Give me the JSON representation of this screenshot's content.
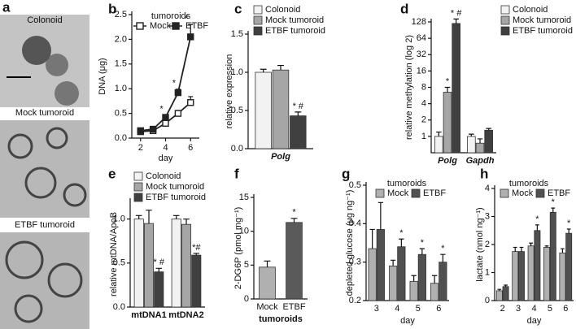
{
  "panel_a": {
    "panel": "a",
    "labels": [
      "Colonoid",
      "Mock tumoroid",
      "ETBF tumoroid"
    ]
  },
  "chart_data": [
    {
      "panel": "b",
      "type": "line",
      "ylabel": "DNA (μg)",
      "xlabel": "day",
      "legend_title": "tumoroids",
      "x": [
        2,
        3,
        4,
        5,
        6
      ],
      "xlim": [
        1.3,
        6.7
      ],
      "xticks": [
        2,
        4,
        6
      ],
      "ylim": [
        0,
        2.5
      ],
      "yticks": [
        {
          "value": 0,
          "label": "0.0"
        },
        0.5,
        {
          "value": 1,
          "label": "1.0"
        },
        1.5,
        {
          "value": 2,
          "label": "2.0"
        },
        2.5
      ],
      "series": [
        {
          "name": "Mock",
          "color": "#222222",
          "marker_fill": "#ffffff",
          "values": [
            0.13,
            0.15,
            0.3,
            0.5,
            0.72
          ],
          "errors": [
            0.03,
            0.03,
            0.04,
            0.06,
            0.12
          ],
          "annotations": [
            null,
            null,
            null,
            null,
            null
          ]
        },
        {
          "name": "ETBF",
          "color": "#222222",
          "marker_fill": "#222222",
          "values": [
            0.15,
            0.18,
            0.42,
            0.92,
            2.05
          ],
          "errors": [
            0.03,
            0.03,
            0.05,
            0.07,
            0.25
          ],
          "annotations": [
            null,
            null,
            "*",
            "*",
            "*"
          ]
        }
      ]
    },
    {
      "panel": "c",
      "type": "grouped_bar",
      "ylabel": "relative expression",
      "categories": [
        "Polg"
      ],
      "ylim": [
        0,
        1.5
      ],
      "yticks": [
        {
          "value": 0,
          "label": "0.0"
        },
        0.5,
        {
          "value": 1,
          "label": "1.0"
        },
        1.5
      ],
      "series": [
        {
          "name": "Colonoid",
          "color": "#f2f2f2",
          "values": [
            1.0
          ],
          "errors": [
            0.04
          ],
          "annotations": [
            null
          ]
        },
        {
          "name": "Mock tumoroid",
          "color": "#a6a6a6",
          "values": [
            1.03
          ],
          "errors": [
            0.06
          ],
          "annotations": [
            null
          ]
        },
        {
          "name": "ETBF tumoroid",
          "color": "#404040",
          "values": [
            0.43
          ],
          "errors": [
            0.05
          ],
          "annotations": [
            "* #"
          ]
        }
      ]
    },
    {
      "panel": "d",
      "type": "grouped_bar",
      "ylabel": "relative methylation (log 2)",
      "yscale": "log",
      "log_base": 2,
      "categories": [
        "Polg",
        "Gapdh"
      ],
      "ylim": [
        0.5,
        128
      ],
      "yticks": [
        1,
        2,
        4,
        8,
        16,
        32,
        64,
        128
      ],
      "series": [
        {
          "name": "Colonoid",
          "color": "#f2f2f2",
          "values": [
            1.0,
            1.0
          ],
          "errors": [
            0.2,
            0.1
          ],
          "annotations": [
            null,
            null
          ]
        },
        {
          "name": "Mock tumoroid",
          "color": "#a6a6a6",
          "values": [
            6.5,
            0.75
          ],
          "errors": [
            1.5,
            0.15
          ],
          "annotations": [
            "*",
            null
          ]
        },
        {
          "name": "ETBF tumoroid",
          "color": "#404040",
          "values": [
            120,
            1.3
          ],
          "errors": [
            25,
            0.1
          ],
          "annotations": [
            "* #",
            null
          ]
        }
      ]
    },
    {
      "panel": "e",
      "type": "grouped_bar",
      "ylabel": "relative mtDNA/ApoB",
      "categories": [
        "mtDNA1",
        "mtDNA2"
      ],
      "ylim": [
        0,
        1.2
      ],
      "yticks": [
        {
          "value": 0,
          "label": "0.0"
        },
        0.5,
        {
          "value": 1,
          "label": "1.0"
        }
      ],
      "series": [
        {
          "name": "Colonoid",
          "color": "#f2f2f2",
          "values": [
            1.0,
            1.0
          ],
          "errors": [
            0.04,
            0.04
          ],
          "annotations": [
            null,
            null
          ]
        },
        {
          "name": "Mock tumoroid",
          "color": "#a6a6a6",
          "values": [
            0.95,
            0.94
          ],
          "errors": [
            0.15,
            0.06
          ],
          "annotations": [
            null,
            null
          ]
        },
        {
          "name": "ETBF tumoroid",
          "color": "#404040",
          "values": [
            0.4,
            0.59
          ],
          "errors": [
            0.04,
            0.02
          ],
          "annotations": [
            "* #",
            "*#"
          ]
        }
      ]
    },
    {
      "panel": "f",
      "type": "bar",
      "ylabel": "2-DG6P (pmol mg⁻¹)",
      "xlabel": "tumoroids",
      "categories": [
        "Mock",
        "ETBF"
      ],
      "values": [
        4.7,
        11.3
      ],
      "errors": [
        0.9,
        0.6
      ],
      "annotations": [
        null,
        "*"
      ],
      "colors": [
        "#b0b0b0",
        "#5a5a5a"
      ],
      "ylim": [
        0,
        15
      ],
      "yticks": [
        0,
        5,
        10,
        15
      ]
    },
    {
      "panel": "g",
      "type": "grouped_bar",
      "ylabel": "depleted glucose (μg ng⁻¹)",
      "xlabel": "day",
      "legend_title": "tumoroids",
      "categories": [
        "3",
        "4",
        "5",
        "6"
      ],
      "ylim": [
        0.2,
        0.5
      ],
      "yticks": [
        0.2,
        0.3,
        0.4,
        0.5
      ],
      "series": [
        {
          "name": "Mock",
          "color": "#b0b0b0",
          "values": [
            0.335,
            0.29,
            0.25,
            0.245
          ],
          "errors": [
            0.05,
            0.015,
            0.015,
            0.02
          ],
          "annotations": [
            null,
            null,
            null,
            null
          ]
        },
        {
          "name": "ETBF",
          "color": "#505050",
          "values": [
            0.385,
            0.34,
            0.32,
            0.3
          ],
          "errors": [
            0.07,
            0.02,
            0.015,
            0.02
          ],
          "annotations": [
            null,
            "*",
            "*",
            "*"
          ]
        }
      ]
    },
    {
      "panel": "h",
      "type": "grouped_bar",
      "ylabel": "lactate (nmol ng⁻¹)",
      "xlabel": "day",
      "legend_title": "tumoroids",
      "categories": [
        "2",
        "3",
        "4",
        "5",
        "6"
      ],
      "ylim": [
        0,
        4
      ],
      "yticks": [
        0,
        1,
        2,
        3,
        4
      ],
      "series": [
        {
          "name": "Mock",
          "color": "#b0b0b0",
          "values": [
            0.35,
            1.75,
            1.95,
            1.9,
            1.7
          ],
          "errors": [
            0.05,
            0.15,
            0.1,
            0.05,
            0.15
          ],
          "annotations": [
            null,
            null,
            null,
            null,
            null
          ]
        },
        {
          "name": "ETBF",
          "color": "#505050",
          "values": [
            0.5,
            1.75,
            2.5,
            3.15,
            2.4
          ],
          "errors": [
            0.05,
            0.15,
            0.2,
            0.15,
            0.15
          ],
          "annotations": [
            null,
            null,
            "*",
            "*",
            "*"
          ]
        }
      ]
    }
  ]
}
